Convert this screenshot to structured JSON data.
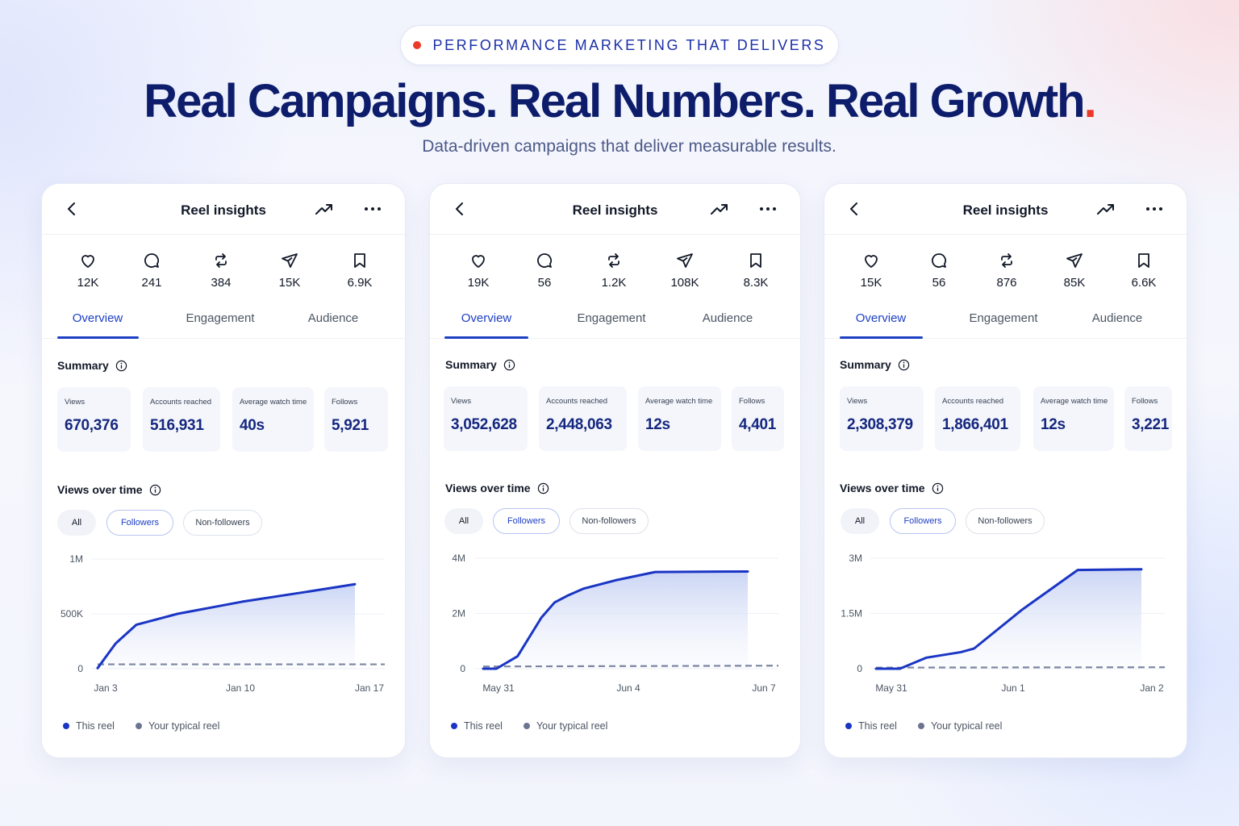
{
  "hero": {
    "eyebrow": "PERFORMANCE MARKETING THAT DELIVERS",
    "headline": "Real Campaigns. Real Numbers. Real Growth",
    "headline_dot": ".",
    "subtitle": "Data-driven campaigns that deliver measurable results.",
    "colors": {
      "accent_red": "#ea3a2a",
      "navy": "#0d1d6b",
      "blue": "#1d3fc4"
    }
  },
  "cards": [
    {
      "title": "Reel insights",
      "metrics": [
        {
          "icon": "heart-icon",
          "value": "12K"
        },
        {
          "icon": "comment-icon",
          "value": "241"
        },
        {
          "icon": "repost-icon",
          "value": "384"
        },
        {
          "icon": "share-icon",
          "value": "15K"
        },
        {
          "icon": "bookmark-icon",
          "value": "6.9K"
        }
      ],
      "tabs": [
        "Overview",
        "Engagement",
        "Audience"
      ],
      "active_tab": "Overview",
      "summary_title": "Summary",
      "summary": [
        {
          "label": "Views",
          "value": "670,376"
        },
        {
          "label": "Accounts reached",
          "value": "516,931"
        },
        {
          "label": "Average watch time",
          "value": "40s"
        },
        {
          "label": "Follows",
          "value": "5,921"
        }
      ],
      "views_title": "Views over time",
      "filters": [
        "All",
        "Followers",
        "Non-followers"
      ],
      "selected_filter": "Followers",
      "legend": [
        "This reel",
        "Your typical reel"
      ],
      "chart_data": {
        "type": "area",
        "y_tick_labels": [
          "1M",
          "500K",
          "0"
        ],
        "x_tick_labels": [
          "Jan 3",
          "Jan 10",
          "Jan 17"
        ],
        "ylim": [
          0,
          1000000
        ],
        "series": [
          {
            "name": "This reel",
            "color": "#1a35c4",
            "points": [
              [
                0,
                5000
              ],
              [
                0.07,
                230000
              ],
              [
                0.15,
                400000
              ],
              [
                0.31,
                500000
              ],
              [
                0.56,
                610000
              ],
              [
                0.81,
                700000
              ],
              [
                1,
                770000
              ]
            ]
          },
          {
            "name": "Your typical reel",
            "color": "#7b86a3",
            "points": [
              [
                0,
                40000
              ],
              [
                1,
                40000
              ]
            ]
          }
        ]
      }
    },
    {
      "title": "Reel insights",
      "metrics": [
        {
          "icon": "heart-icon",
          "value": "19K"
        },
        {
          "icon": "comment-icon",
          "value": "56"
        },
        {
          "icon": "repost-icon",
          "value": "1.2K"
        },
        {
          "icon": "share-icon",
          "value": "108K"
        },
        {
          "icon": "bookmark-icon",
          "value": "8.3K"
        }
      ],
      "tabs": [
        "Overview",
        "Engagement",
        "Audience"
      ],
      "active_tab": "Overview",
      "summary_title": "Summary",
      "summary": [
        {
          "label": "Views",
          "value": "3,052,628"
        },
        {
          "label": "Accounts reached",
          "value": "2,448,063"
        },
        {
          "label": "Average watch time",
          "value": "12s"
        },
        {
          "label": "Follows",
          "value": "4,401"
        }
      ],
      "views_title": "Views over time",
      "filters": [
        "All",
        "Followers",
        "Non-followers"
      ],
      "selected_filter": "Followers",
      "legend": [
        "This reel",
        "Your typical reel"
      ],
      "chart_data": {
        "type": "area",
        "y_tick_labels": [
          "4M",
          "2M",
          "0"
        ],
        "x_tick_labels": [
          "May 31",
          "Jun 4",
          "Jun 7"
        ],
        "ylim": [
          0,
          4000000
        ],
        "series": [
          {
            "name": "This reel",
            "color": "#1a35c4",
            "points": [
              [
                0,
                0
              ],
              [
                0.05,
                0
              ],
              [
                0.13,
                450000
              ],
              [
                0.22,
                1850000
              ],
              [
                0.27,
                2400000
              ],
              [
                0.32,
                2650000
              ],
              [
                0.38,
                2900000
              ],
              [
                0.5,
                3200000
              ],
              [
                0.65,
                3500000
              ],
              [
                1,
                3520000
              ]
            ]
          },
          {
            "name": "Your typical reel",
            "color": "#7b86a3",
            "points": [
              [
                0,
                80000
              ],
              [
                1,
                110000
              ]
            ]
          }
        ]
      }
    },
    {
      "title": "Reel insights",
      "metrics": [
        {
          "icon": "heart-icon",
          "value": "15K"
        },
        {
          "icon": "comment-icon",
          "value": "56"
        },
        {
          "icon": "repost-icon",
          "value": "876"
        },
        {
          "icon": "share-icon",
          "value": "85K"
        },
        {
          "icon": "bookmark-icon",
          "value": "6.6K"
        }
      ],
      "tabs": [
        "Overview",
        "Engagement",
        "Audience"
      ],
      "active_tab": "Overview",
      "summary_title": "Summary",
      "summary": [
        {
          "label": "Views",
          "value": "2,308,379"
        },
        {
          "label": "Accounts reached",
          "value": "1,866,401"
        },
        {
          "label": "Average watch time",
          "value": "12s"
        },
        {
          "label": "Follows",
          "value": "3,221"
        }
      ],
      "views_title": "Views over time",
      "filters": [
        "All",
        "Followers",
        "Non-followers"
      ],
      "selected_filter": "Followers",
      "legend": [
        "This reel",
        "Your typical reel"
      ],
      "chart_data": {
        "type": "area",
        "y_tick_labels": [
          "3M",
          "1.5M",
          "0"
        ],
        "x_tick_labels": [
          "May 31",
          "Jun 1",
          "Jan 2"
        ],
        "ylim": [
          0,
          3000000
        ],
        "series": [
          {
            "name": "This reel",
            "color": "#1a35c4",
            "points": [
              [
                0,
                0
              ],
              [
                0.09,
                0
              ],
              [
                0.19,
                300000
              ],
              [
                0.32,
                450000
              ],
              [
                0.37,
                550000
              ],
              [
                0.55,
                1600000
              ],
              [
                0.76,
                2680000
              ],
              [
                1,
                2700000
              ]
            ]
          },
          {
            "name": "Your typical reel",
            "color": "#7b86a3",
            "points": [
              [
                0,
                30000
              ],
              [
                1,
                40000
              ]
            ]
          }
        ]
      }
    }
  ]
}
